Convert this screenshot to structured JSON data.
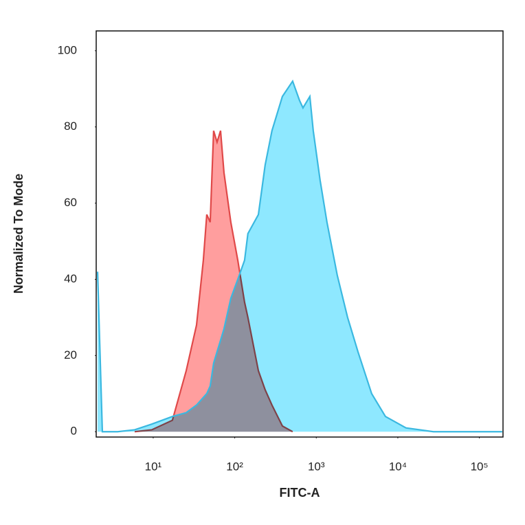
{
  "chart_data": {
    "type": "histogram-overlay",
    "x_label": "FITC-A",
    "y_label": "Normalized To Mode",
    "x_scale": "log",
    "xlim": [
      2,
      195000
    ],
    "ylim": [
      -1.4,
      105.2
    ],
    "xticks": [
      {
        "value": 10,
        "label": "10¹"
      },
      {
        "value": 100,
        "label": "10²"
      },
      {
        "value": 1000,
        "label": "10³"
      },
      {
        "value": 10000,
        "label": "10⁴"
      },
      {
        "value": 100000,
        "label": "10⁵"
      }
    ],
    "yticks": [
      0,
      20,
      40,
      60,
      80,
      100
    ],
    "x": [
      2.08,
      2.38,
      3.65,
      5.93,
      9.6,
      17.2,
      25.4,
      34.0,
      41.2,
      45.4,
      50.0,
      55.1,
      60.7,
      67.0,
      73.8,
      89.5,
      109,
      132,
      145,
      195,
      236,
      286,
      384,
      513,
      622,
      687,
      834,
      918,
      1114,
      1352,
      1811,
      2421,
      3243,
      4775,
      7047,
      12590,
      27350,
      190500
    ],
    "series": [
      {
        "color": "#e04848",
        "fill": "#ff9e9e",
        "values": [
          null,
          null,
          null,
          0,
          0.5,
          3,
          16,
          28,
          45,
          57,
          55,
          79,
          76,
          79,
          68,
          55,
          45,
          34,
          30,
          16,
          11,
          7,
          1.5,
          0,
          null,
          null,
          null,
          null,
          null,
          null,
          null,
          null,
          null,
          null,
          null,
          null,
          null,
          null
        ]
      },
      {
        "color": "#3ab8e0",
        "fill": "#8ee8ff",
        "values": [
          42,
          0,
          0,
          0.5,
          2,
          4,
          5,
          7,
          9,
          10,
          12,
          18,
          21,
          24,
          27,
          35,
          40,
          45,
          52,
          57,
          70,
          79,
          88,
          92,
          87,
          85,
          88,
          79,
          66,
          55,
          41,
          30,
          21,
          10,
          4,
          1,
          0,
          0
        ]
      }
    ]
  }
}
